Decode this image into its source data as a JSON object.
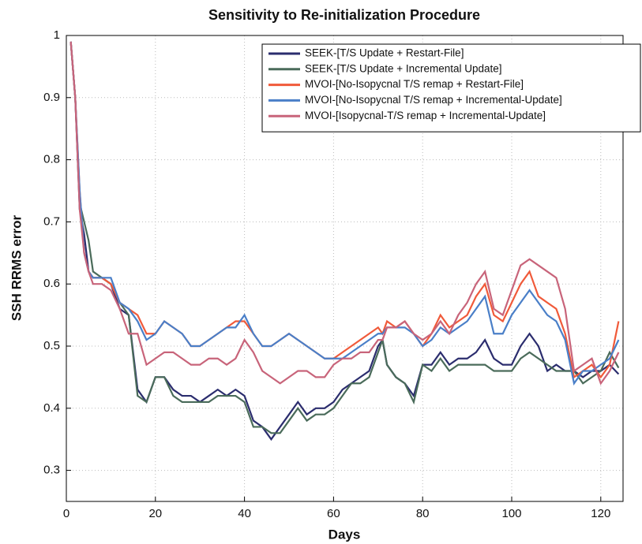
{
  "chart_data": {
    "type": "line",
    "title": "Sensitivity to Re-initialization Procedure",
    "x_label": "Days",
    "y_label": "SSH RRMS error",
    "xlim": [
      0,
      125
    ],
    "ylim": [
      0.25,
      1
    ],
    "xticks": [
      0,
      20,
      40,
      60,
      80,
      100,
      120
    ],
    "yticks": [
      0.3,
      0.4,
      0.5,
      0.6,
      0.7,
      0.8,
      0.9,
      1
    ],
    "grid": true,
    "legend": "upper right",
    "x": [
      1,
      2,
      3,
      4,
      5,
      6,
      8,
      10,
      12,
      14,
      16,
      18,
      20,
      22,
      24,
      26,
      28,
      30,
      32,
      34,
      36,
      38,
      40,
      42,
      44,
      46,
      48,
      50,
      52,
      54,
      56,
      58,
      60,
      62,
      64,
      66,
      68,
      70,
      71,
      72,
      74,
      76,
      78,
      80,
      82,
      84,
      86,
      88,
      90,
      92,
      94,
      96,
      98,
      100,
      102,
      104,
      106,
      108,
      110,
      112,
      114,
      116,
      118,
      120,
      122,
      124
    ],
    "series": [
      {
        "name": "SEEK-[T/S Update + Restart-File]",
        "color": "#2b2d6e",
        "values": [
          0.99,
          0.9,
          0.72,
          0.68,
          0.62,
          0.61,
          0.61,
          0.6,
          0.56,
          0.55,
          0.43,
          0.41,
          0.45,
          0.45,
          0.43,
          0.42,
          0.42,
          0.41,
          0.42,
          0.43,
          0.42,
          0.43,
          0.42,
          0.38,
          0.37,
          0.35,
          0.37,
          0.39,
          0.41,
          0.39,
          0.4,
          0.4,
          0.41,
          0.43,
          0.44,
          0.45,
          0.46,
          0.5,
          0.51,
          0.47,
          0.45,
          0.44,
          0.42,
          0.47,
          0.47,
          0.49,
          0.47,
          0.48,
          0.48,
          0.49,
          0.51,
          0.48,
          0.47,
          0.47,
          0.5,
          0.52,
          0.5,
          0.46,
          0.47,
          0.46,
          0.46,
          0.45,
          0.46,
          0.46,
          0.47,
          0.455
        ]
      },
      {
        "name": "SEEK-[T/S Update + Incremental Update]",
        "color": "#4a6b5a",
        "values": [
          0.99,
          0.9,
          0.73,
          0.7,
          0.67,
          0.62,
          0.61,
          0.6,
          0.57,
          0.55,
          0.42,
          0.41,
          0.45,
          0.45,
          0.42,
          0.41,
          0.41,
          0.41,
          0.41,
          0.42,
          0.42,
          0.42,
          0.41,
          0.37,
          0.37,
          0.36,
          0.36,
          0.38,
          0.4,
          0.38,
          0.39,
          0.39,
          0.4,
          0.42,
          0.44,
          0.44,
          0.45,
          0.49,
          0.51,
          0.47,
          0.45,
          0.44,
          0.41,
          0.47,
          0.46,
          0.48,
          0.46,
          0.47,
          0.47,
          0.47,
          0.47,
          0.46,
          0.46,
          0.46,
          0.48,
          0.49,
          0.48,
          0.47,
          0.46,
          0.46,
          0.46,
          0.44,
          0.45,
          0.46,
          0.49,
          0.465
        ]
      },
      {
        "name": "MVOI-[No-Isopycnal T/S remap + Restart-File]",
        "color": "#f05a3a",
        "values": [
          0.99,
          0.9,
          0.75,
          0.65,
          0.62,
          0.61,
          0.61,
          0.6,
          0.57,
          0.56,
          0.55,
          0.52,
          0.52,
          0.54,
          0.53,
          0.52,
          0.5,
          0.5,
          0.51,
          0.52,
          0.53,
          0.54,
          0.54,
          0.52,
          0.5,
          0.5,
          0.51,
          0.52,
          0.51,
          0.5,
          0.49,
          0.48,
          0.48,
          0.49,
          0.5,
          0.51,
          0.52,
          0.53,
          0.52,
          0.54,
          0.53,
          0.54,
          0.52,
          0.5,
          0.52,
          0.55,
          0.53,
          0.54,
          0.55,
          0.58,
          0.6,
          0.55,
          0.54,
          0.57,
          0.6,
          0.62,
          0.58,
          0.57,
          0.56,
          0.52,
          0.45,
          0.46,
          0.47,
          0.45,
          0.47,
          0.54
        ]
      },
      {
        "name": "MVOI-[No-Isopycnal T/S remap + Incremental-Update]",
        "color": "#4a7fc8",
        "values": [
          0.99,
          0.9,
          0.75,
          0.65,
          0.62,
          0.61,
          0.61,
          0.61,
          0.57,
          0.56,
          0.54,
          0.51,
          0.52,
          0.54,
          0.53,
          0.52,
          0.5,
          0.5,
          0.51,
          0.52,
          0.53,
          0.53,
          0.55,
          0.52,
          0.5,
          0.5,
          0.51,
          0.52,
          0.51,
          0.5,
          0.49,
          0.48,
          0.48,
          0.48,
          0.49,
          0.5,
          0.51,
          0.52,
          0.52,
          0.53,
          0.53,
          0.53,
          0.52,
          0.5,
          0.51,
          0.53,
          0.52,
          0.53,
          0.54,
          0.56,
          0.58,
          0.52,
          0.52,
          0.55,
          0.57,
          0.59,
          0.57,
          0.55,
          0.54,
          0.51,
          0.44,
          0.46,
          0.46,
          0.47,
          0.48,
          0.51
        ]
      },
      {
        "name": "MVOI-[Isopycnal-T/S remap + Incremental-Update]",
        "color": "#c8647a",
        "values": [
          0.99,
          0.9,
          0.72,
          0.65,
          0.62,
          0.6,
          0.6,
          0.59,
          0.56,
          0.52,
          0.52,
          0.47,
          0.48,
          0.49,
          0.49,
          0.48,
          0.47,
          0.47,
          0.48,
          0.48,
          0.47,
          0.48,
          0.51,
          0.49,
          0.46,
          0.45,
          0.44,
          0.45,
          0.46,
          0.46,
          0.45,
          0.45,
          0.47,
          0.48,
          0.48,
          0.49,
          0.49,
          0.51,
          0.51,
          0.53,
          0.53,
          0.54,
          0.52,
          0.51,
          0.52,
          0.54,
          0.52,
          0.55,
          0.57,
          0.6,
          0.62,
          0.56,
          0.55,
          0.59,
          0.63,
          0.64,
          0.63,
          0.62,
          0.61,
          0.56,
          0.46,
          0.47,
          0.48,
          0.44,
          0.46,
          0.49
        ]
      }
    ]
  }
}
